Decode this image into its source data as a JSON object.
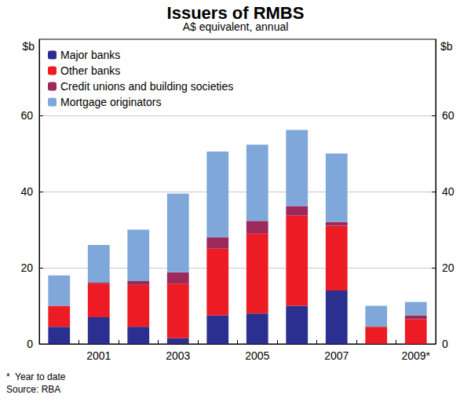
{
  "chart_data": {
    "type": "bar",
    "title": "Issuers of RMBS",
    "subtitle": "A$ equivalent, annual",
    "ylabel": "$b",
    "y2label": "$b",
    "notes": [
      "*  Year to date",
      "Source: RBA"
    ],
    "categories": [
      null,
      "2001",
      null,
      "2003",
      null,
      "2005",
      null,
      "2007",
      null,
      "2009*"
    ],
    "series": [
      {
        "name": "Major banks",
        "color": "#2b2f8f",
        "values": [
          4.5,
          7,
          4.5,
          1.5,
          7.5,
          8,
          10,
          14,
          0,
          0
        ]
      },
      {
        "name": "Other banks",
        "color": "#ed1c24",
        "values": [
          5.5,
          8.8,
          11,
          14.3,
          17.5,
          21,
          23.7,
          17,
          4.5,
          6.5
        ]
      },
      {
        "name": "Credit unions and building societies",
        "color": "#9b2a5a",
        "values": [
          0,
          0.4,
          1,
          3,
          3,
          3.3,
          2.5,
          1,
          0,
          1
        ]
      },
      {
        "name": "Mortgage originators",
        "color": "#7fa7d9",
        "values": [
          8,
          9.8,
          13.5,
          20.7,
          22.5,
          20,
          20,
          18,
          5.5,
          3.5
        ]
      }
    ],
    "stacked": true,
    "ylim": [
      0,
      80
    ],
    "yticks": [
      0,
      20,
      40,
      60
    ],
    "y2lim": [
      0,
      80
    ],
    "y2ticks": [
      0,
      20,
      40,
      60
    ],
    "grid": true,
    "legend": "top-left"
  }
}
